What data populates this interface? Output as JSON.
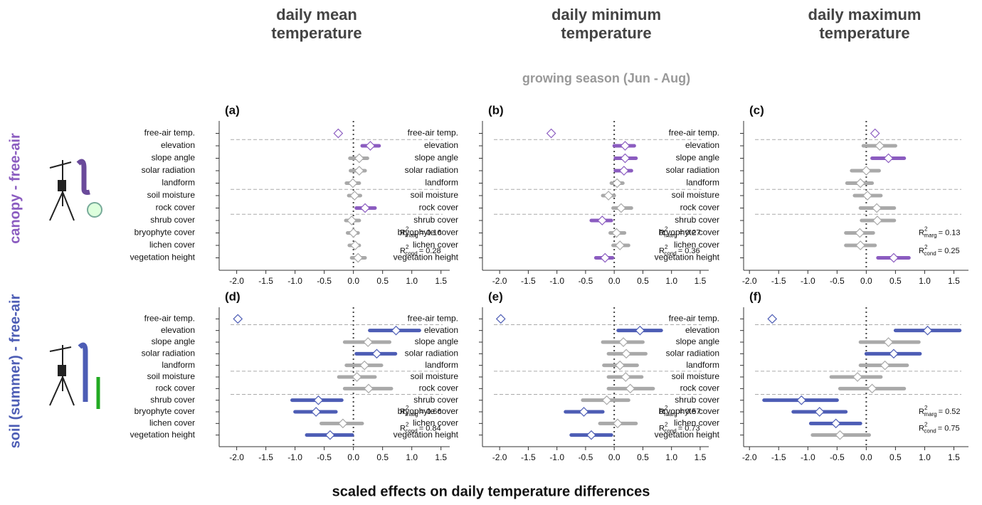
{
  "figure": {
    "column_titles": [
      [
        "daily mean",
        "temperature"
      ],
      [
        "daily minimum",
        "temperature"
      ],
      [
        "daily maximum",
        "temperature"
      ]
    ],
    "subtitle": "growing season (Jun - Aug)",
    "row_labels": [
      {
        "text": "canopy - free-air",
        "color": "#8b5cc0"
      },
      {
        "text": "soil (summer) - free-air",
        "color": "#4d5db5"
      }
    ],
    "xlabel": "scaled effects on daily temperature differences"
  },
  "chart_data": [
    {
      "type": "interval",
      "title": "(a)",
      "categories": [
        "free-air temp.",
        "elevation",
        "slope angle",
        "solar radiation",
        "landform",
        "soil moisture",
        "rock cover",
        "shrub cover",
        "bryophyte cover",
        "lichen cover",
        "vegetation height"
      ],
      "values": [
        -0.26,
        0.29,
        0.1,
        0.1,
        -0.01,
        0.02,
        0.2,
        -0.03,
        0.0,
        0.03,
        0.08
      ],
      "ci_low": [
        null,
        0.15,
        -0.06,
        -0.05,
        -0.12,
        -0.08,
        0.05,
        -0.13,
        -0.1,
        -0.07,
        -0.03
      ],
      "ci_high": [
        null,
        0.44,
        0.24,
        0.2,
        0.1,
        0.12,
        0.37,
        0.1,
        0.08,
        0.1,
        0.2
      ],
      "colors": [
        "#8b5cc0",
        "#8b5cc0",
        "#a9a9a9",
        "#a9a9a9",
        "#a9a9a9",
        "#a9a9a9",
        "#8b5cc0",
        "#a9a9a9",
        "#a9a9a9",
        "#a9a9a9",
        "#a9a9a9"
      ],
      "xlim": [
        -2.3,
        1.65
      ],
      "xticks": [
        {
          "value": -2,
          "label": "-2.0"
        },
        -1.5,
        {
          "value": -1,
          "label": "-1.0"
        },
        -0.5,
        {
          "value": 0,
          "label": "0.0"
        },
        0.5,
        {
          "value": 1,
          "label": "1.0"
        },
        1.5
      ],
      "annotations": [
        {
          "text": "R",
          "sup": "2",
          "sub": "marg",
          "relation": "=",
          "value": 0.16
        },
        {
          "text": "R",
          "sup": "2",
          "sub": "cond",
          "relation": "=",
          "value": 0.28
        }
      ]
    },
    {
      "type": "interval",
      "title": "(b)",
      "categories": [
        "free-air temp.",
        "elevation",
        "slope angle",
        "solar radiation",
        "landform",
        "soil moisture",
        "rock cover",
        "shrub cover",
        "bryophyte cover",
        "lichen cover",
        "vegetation height"
      ],
      "values": [
        -1.1,
        0.19,
        0.19,
        0.17,
        0.05,
        -0.1,
        0.12,
        -0.21,
        0.04,
        0.1,
        -0.16
      ],
      "ci_low": [
        null,
        0.0,
        0.02,
        0.02,
        -0.05,
        -0.2,
        -0.02,
        -0.4,
        -0.07,
        -0.02,
        -0.32
      ],
      "ci_high": [
        null,
        0.35,
        0.38,
        0.3,
        0.15,
        0.0,
        0.3,
        -0.05,
        0.18,
        0.25,
        -0.03
      ],
      "colors": [
        "#8b5cc0",
        "#8b5cc0",
        "#8b5cc0",
        "#8b5cc0",
        "#a9a9a9",
        "#a9a9a9",
        "#a9a9a9",
        "#8b5cc0",
        "#a9a9a9",
        "#a9a9a9",
        "#8b5cc0"
      ],
      "xlim": [
        -2.3,
        1.65
      ],
      "xticks": [
        {
          "value": -2,
          "label": "-2.0"
        },
        -1.5,
        {
          "value": -1,
          "label": "-1.0"
        },
        -0.5,
        {
          "value": 0,
          "label": "0.0"
        },
        0.5,
        {
          "value": 1,
          "label": "1.0"
        },
        1.5
      ],
      "annotations": [
        {
          "text": "R",
          "sup": "2",
          "sub": "marg",
          "relation": "=",
          "value": 0.27
        },
        {
          "text": "R",
          "sup": "2",
          "sub": "cond",
          "relation": "=",
          "value": 0.36
        }
      ]
    },
    {
      "type": "interval",
      "title": "(c)",
      "categories": [
        "free-air temp.",
        "elevation",
        "slope angle",
        "solar radiation",
        "landform",
        "soil moisture",
        "rock cover",
        "shrub cover",
        "bryophyte cover",
        "lichen cover",
        "vegetation height"
      ],
      "values": [
        0.15,
        0.23,
        0.38,
        0.0,
        -0.1,
        0.02,
        0.18,
        0.19,
        -0.11,
        -0.1,
        0.47
      ],
      "ci_low": [
        null,
        -0.05,
        0.1,
        -0.25,
        -0.33,
        -0.2,
        -0.1,
        -0.08,
        -0.35,
        -0.35,
        0.2
      ],
      "ci_high": [
        null,
        0.5,
        0.65,
        0.22,
        0.1,
        0.25,
        0.48,
        0.48,
        0.12,
        0.15,
        0.73
      ],
      "colors": [
        "#8b5cc0",
        "#a9a9a9",
        "#8b5cc0",
        "#a9a9a9",
        "#a9a9a9",
        "#a9a9a9",
        "#a9a9a9",
        "#a9a9a9",
        "#a9a9a9",
        "#a9a9a9",
        "#8b5cc0"
      ],
      "xlim": [
        -2.1,
        1.75
      ],
      "xticks": [
        {
          "value": -2,
          "label": "-2.0"
        },
        -1.5,
        {
          "value": -1,
          "label": "-1.0"
        },
        -0.5,
        {
          "value": 0,
          "label": "0.0"
        },
        0.5,
        {
          "value": 1,
          "label": "1.0"
        },
        1.5
      ],
      "annotations": [
        {
          "text": "R",
          "sup": "2",
          "sub": "marg",
          "relation": "=",
          "value": 0.13
        },
        {
          "text": "R",
          "sup": "2",
          "sub": "cond",
          "relation": "=",
          "value": 0.25
        }
      ]
    },
    {
      "type": "interval",
      "title": "(d)",
      "categories": [
        "free-air temp.",
        "elevation",
        "slope angle",
        "solar radiation",
        "landform",
        "soil moisture",
        "rock cover",
        "shrub cover",
        "bryophyte cover",
        "lichen cover",
        "vegetation height"
      ],
      "values": [
        -1.98,
        0.73,
        0.25,
        0.4,
        0.19,
        0.06,
        0.26,
        -0.6,
        -0.64,
        -0.18,
        -0.4
      ],
      "ci_low": [
        null,
        0.28,
        -0.15,
        0.05,
        -0.12,
        -0.25,
        -0.15,
        -1.05,
        -1.0,
        -0.55,
        -0.8
      ],
      "ci_high": [
        null,
        1.13,
        0.62,
        0.72,
        0.48,
        0.37,
        0.65,
        -0.2,
        -0.3,
        0.15,
        -0.02
      ],
      "colors": [
        "#4d5db5",
        "#4d5db5",
        "#a9a9a9",
        "#4d5db5",
        "#a9a9a9",
        "#a9a9a9",
        "#a9a9a9",
        "#4d5db5",
        "#4d5db5",
        "#a9a9a9",
        "#4d5db5"
      ],
      "xlim": [
        -2.3,
        1.65
      ],
      "xticks": [
        {
          "value": -2,
          "label": "-2.0"
        },
        -1.5,
        {
          "value": -1,
          "label": "-1.0"
        },
        -0.5,
        {
          "value": 0,
          "label": "0.0"
        },
        0.5,
        {
          "value": 1,
          "label": "1.0"
        },
        1.5
      ],
      "annotations": [
        {
          "text": "R",
          "sup": "2",
          "sub": "marg",
          "relation": "=",
          "value": 0.66
        },
        {
          "text": "R",
          "sup": "2",
          "sub": "cond",
          "relation": "=",
          "value": 0.84
        }
      ]
    },
    {
      "type": "interval",
      "title": "(e)",
      "categories": [
        "free-air temp.",
        "elevation",
        "slope angle",
        "solar radiation",
        "landform",
        "soil moisture",
        "rock cover",
        "shrub cover",
        "bryophyte cover",
        "lichen cover",
        "vegetation height"
      ],
      "values": [
        -1.98,
        0.45,
        0.16,
        0.21,
        0.1,
        0.2,
        0.28,
        -0.13,
        -0.53,
        0.06,
        -0.4
      ],
      "ci_low": [
        null,
        0.07,
        -0.2,
        -0.1,
        -0.18,
        -0.1,
        -0.1,
        -0.55,
        -0.85,
        -0.25,
        -0.75
      ],
      "ci_high": [
        null,
        0.82,
        0.5,
        0.55,
        0.4,
        0.48,
        0.68,
        0.25,
        -0.2,
        0.38,
        -0.05
      ],
      "colors": [
        "#4d5db5",
        "#4d5db5",
        "#a9a9a9",
        "#a9a9a9",
        "#a9a9a9",
        "#a9a9a9",
        "#a9a9a9",
        "#a9a9a9",
        "#4d5db5",
        "#a9a9a9",
        "#4d5db5"
      ],
      "xlim": [
        -2.3,
        1.65
      ],
      "xticks": [
        {
          "value": -2,
          "label": "-2.0"
        },
        -1.5,
        {
          "value": -1,
          "label": "-1.0"
        },
        -0.5,
        {
          "value": 0,
          "label": "0.0"
        },
        0.5,
        {
          "value": 1,
          "label": "1.0"
        },
        1.5
      ],
      "annotations": [
        {
          "text": "R",
          "sup": "2",
          "sub": "marg",
          "relation": "=",
          "value": 0.57
        },
        {
          "text": "R",
          "sup": "2",
          "sub": "cond",
          "relation": "=",
          "value": 0.73
        }
      ]
    },
    {
      "type": "interval",
      "title": "(f)",
      "categories": [
        "free-air temp.",
        "elevation",
        "slope angle",
        "solar radiation",
        "landform",
        "soil moisture",
        "rock cover",
        "shrub cover",
        "bryophyte cover",
        "lichen cover",
        "vegetation height"
      ],
      "values": [
        -1.61,
        1.05,
        0.38,
        0.47,
        0.32,
        -0.15,
        0.1,
        -1.11,
        -0.8,
        -0.52,
        -0.45
      ],
      "ci_low": [
        null,
        0.5,
        -0.1,
        0.0,
        -0.1,
        -0.6,
        -0.45,
        -1.75,
        -1.25,
        -0.95,
        -0.92
      ],
      "ci_high": [
        null,
        1.6,
        0.9,
        0.92,
        0.7,
        0.25,
        0.65,
        -0.5,
        -0.35,
        -0.1,
        0.05
      ],
      "colors": [
        "#4d5db5",
        "#4d5db5",
        "#a9a9a9",
        "#4d5db5",
        "#a9a9a9",
        "#a9a9a9",
        "#a9a9a9",
        "#4d5db5",
        "#4d5db5",
        "#4d5db5",
        "#a9a9a9"
      ],
      "xlim": [
        -2.1,
        1.75
      ],
      "xticks": [
        {
          "value": -2,
          "label": "-2.0"
        },
        -1.5,
        {
          "value": -1,
          "label": "-1.0"
        },
        -0.5,
        {
          "value": 0,
          "label": "0.0"
        },
        0.5,
        {
          "value": 1,
          "label": "1.0"
        },
        1.5
      ],
      "annotations": [
        {
          "text": "R",
          "sup": "2",
          "sub": "marg",
          "relation": "=",
          "value": 0.52
        },
        {
          "text": "R",
          "sup": "2",
          "sub": "cond",
          "relation": "=",
          "value": 0.75
        }
      ]
    }
  ]
}
